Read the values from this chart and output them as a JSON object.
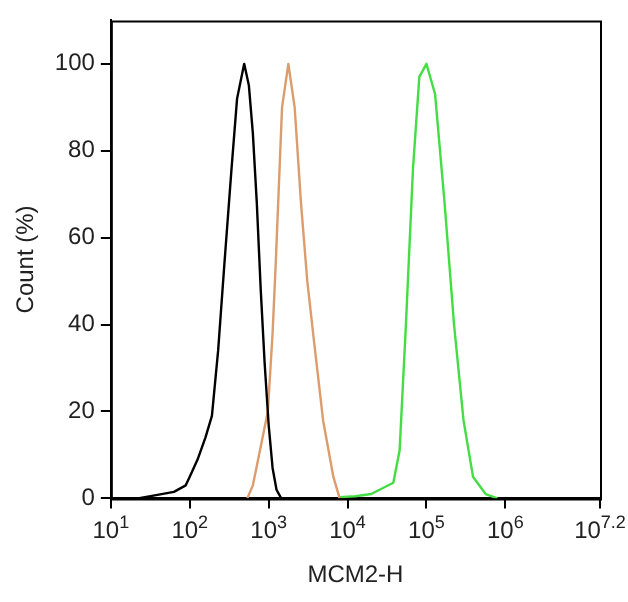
{
  "chart_data": {
    "type": "line",
    "xlabel": "MCM2-H",
    "ylabel": "Count (%)",
    "log": "x",
    "grid": false,
    "legend": false,
    "marker": "none",
    "xlim": [
      10,
      15848932
    ],
    "xticks": [
      {
        "value": 10,
        "label": "10$^{1}$"
      },
      {
        "value": 100,
        "label": "10$^{2}$"
      },
      {
        "value": 1000,
        "label": "10$^{3}$"
      },
      {
        "value": 10000,
        "label": "10$^{4}$"
      },
      {
        "value": 100000,
        "label": "10$^{5}$"
      },
      {
        "value": 1000000,
        "label": "10$^{6}$"
      },
      {
        "value": 15848932,
        "label": "10$^{7.2}$"
      }
    ],
    "ylim": [
      0,
      110
    ],
    "yticks": [
      0,
      20,
      40,
      60,
      80,
      100
    ],
    "series": [
      {
        "color": "#000000",
        "x": [
          22,
          36,
          63,
          89,
          100,
          126,
          158,
          191,
          229,
          275,
          339,
          398,
          490,
          562,
          631,
          708,
          794,
          891,
          1000,
          1122,
          1259,
          1445
        ],
        "values": [
          0,
          0.7,
          1.5,
          3,
          5,
          9,
          14,
          19,
          34,
          54,
          76,
          92,
          100,
          95,
          84,
          68,
          48,
          31,
          17,
          7,
          2,
          0
        ]
      },
      {
        "color": "#dc9c6c",
        "x": [
          537,
          631,
          776,
          977,
          1122,
          1230,
          1479,
          1778,
          2138,
          2570,
          3090,
          3715,
          4898,
          6607,
          7943
        ],
        "values": [
          0,
          3,
          11,
          20,
          38,
          54,
          90,
          100,
          90,
          68,
          50,
          37,
          18,
          5,
          0
        ]
      },
      {
        "color": "#44dd44",
        "x": [
          7943,
          12589,
          19953,
          38019,
          45709,
          54954,
          67608,
          81283,
          100000,
          128825,
          169824,
          223872,
          295121,
          389045,
          562341,
          794328
        ],
        "values": [
          0.3,
          0.5,
          1,
          3.6,
          11,
          40,
          76,
          97,
          100,
          93,
          68,
          40,
          18,
          5,
          1,
          0
        ]
      }
    ]
  }
}
